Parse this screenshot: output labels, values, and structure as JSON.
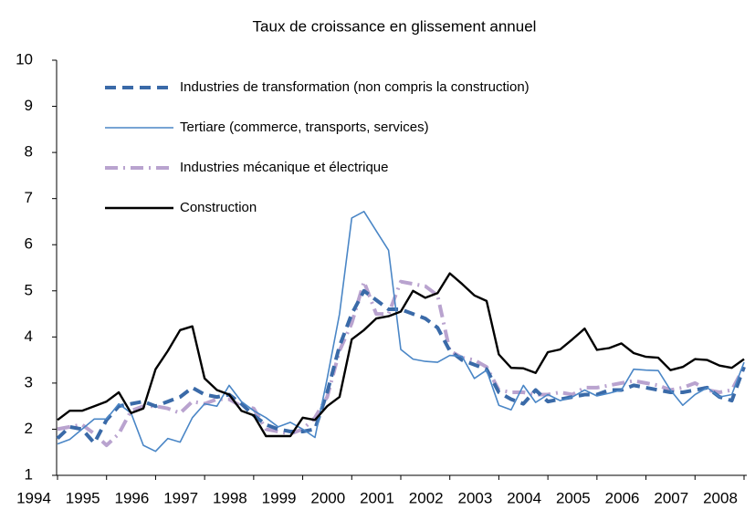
{
  "chart_data": {
    "type": "line",
    "title": "Taux de croissance en glissement annuel",
    "categories": [
      "1994",
      null,
      null,
      null,
      "1995",
      null,
      null,
      null,
      "1996",
      null,
      null,
      null,
      "1997",
      null,
      null,
      null,
      "1998",
      null,
      null,
      null,
      "1999",
      null,
      null,
      null,
      "2000",
      null,
      null,
      null,
      "2001",
      null,
      null,
      null,
      "2002",
      null,
      null,
      null,
      "2003",
      null,
      null,
      null,
      "2004",
      null,
      null,
      null,
      "2005",
      null,
      null,
      null,
      "2006",
      null,
      null,
      null,
      "2007",
      null,
      null,
      null,
      "2008"
    ],
    "ylim": [
      1,
      10
    ],
    "yticks": [
      1,
      2,
      3,
      4,
      5,
      6,
      7,
      8,
      9,
      10
    ],
    "series": [
      {
        "name": "Industries de transformation (non compris la construction)",
        "color": "#3a6aa8",
        "linestyle": "dashed",
        "values": [
          1.8,
          2.05,
          2.0,
          1.7,
          2.2,
          2.5,
          2.55,
          2.6,
          2.5,
          2.6,
          2.7,
          2.9,
          2.75,
          2.7,
          2.75,
          2.55,
          2.3,
          2.1,
          2.0,
          1.95,
          1.95,
          2.0,
          2.8,
          3.8,
          4.5,
          5.0,
          4.8,
          4.6,
          4.6,
          4.5,
          4.4,
          4.2,
          3.7,
          3.5,
          3.4,
          3.3,
          2.8,
          2.65,
          2.55,
          2.85,
          2.6,
          2.65,
          2.7,
          2.75,
          2.75,
          2.85,
          2.85,
          2.95,
          2.9,
          2.85,
          2.8,
          2.8,
          2.85,
          2.9,
          2.7,
          2.62,
          3.35
        ]
      },
      {
        "name": "Tertiare (commerce, transports, services)",
        "color": "#4a86c6",
        "linestyle": "solid",
        "values": [
          1.68,
          1.78,
          2.0,
          2.22,
          2.22,
          2.55,
          2.35,
          1.65,
          1.52,
          1.8,
          1.72,
          2.25,
          2.55,
          2.5,
          2.95,
          2.6,
          2.4,
          2.25,
          2.05,
          2.15,
          2.0,
          1.82,
          3.1,
          4.5,
          6.58,
          6.72,
          6.3,
          5.88,
          3.73,
          3.52,
          3.47,
          3.45,
          3.6,
          3.58,
          3.1,
          3.28,
          2.52,
          2.42,
          2.95,
          2.58,
          2.75,
          2.62,
          2.7,
          2.85,
          2.72,
          2.78,
          2.85,
          3.3,
          3.28,
          3.27,
          2.85,
          2.52,
          2.75,
          2.9,
          2.7,
          2.75,
          3.45
        ]
      },
      {
        "name": "Industries mécanique et électrique",
        "color": "#b9a3cf",
        "linestyle": "dashdot",
        "values": [
          2.0,
          2.05,
          2.1,
          1.9,
          1.65,
          1.9,
          2.4,
          2.5,
          2.5,
          2.45,
          2.35,
          2.6,
          2.55,
          2.65,
          2.65,
          2.5,
          2.45,
          2.0,
          1.95,
          1.9,
          2.0,
          2.25,
          2.7,
          3.7,
          4.3,
          5.2,
          4.5,
          4.5,
          5.2,
          5.15,
          5.1,
          4.9,
          3.7,
          3.55,
          3.5,
          3.35,
          2.85,
          2.8,
          2.8,
          2.75,
          2.75,
          2.8,
          2.75,
          2.9,
          2.9,
          2.95,
          3.0,
          3.05,
          3.0,
          2.95,
          2.85,
          2.9,
          3.0,
          2.85,
          2.8,
          2.85,
          3.35
        ]
      },
      {
        "name": "Construction",
        "color": "#000000",
        "linestyle": "solid",
        "values": [
          2.2,
          2.4,
          2.4,
          2.5,
          2.6,
          2.8,
          2.35,
          2.45,
          3.3,
          3.7,
          4.15,
          4.23,
          3.1,
          2.85,
          2.75,
          2.4,
          2.3,
          1.85,
          1.85,
          1.85,
          2.25,
          2.2,
          2.5,
          2.7,
          3.95,
          4.15,
          4.4,
          4.45,
          4.55,
          5.0,
          4.85,
          4.95,
          5.38,
          5.15,
          4.9,
          4.78,
          3.62,
          3.33,
          3.32,
          3.22,
          3.67,
          3.73,
          3.95,
          4.18,
          3.72,
          3.76,
          3.86,
          3.65,
          3.57,
          3.55,
          3.28,
          3.35,
          3.52,
          3.5,
          3.38,
          3.33,
          3.52
        ]
      }
    ]
  }
}
